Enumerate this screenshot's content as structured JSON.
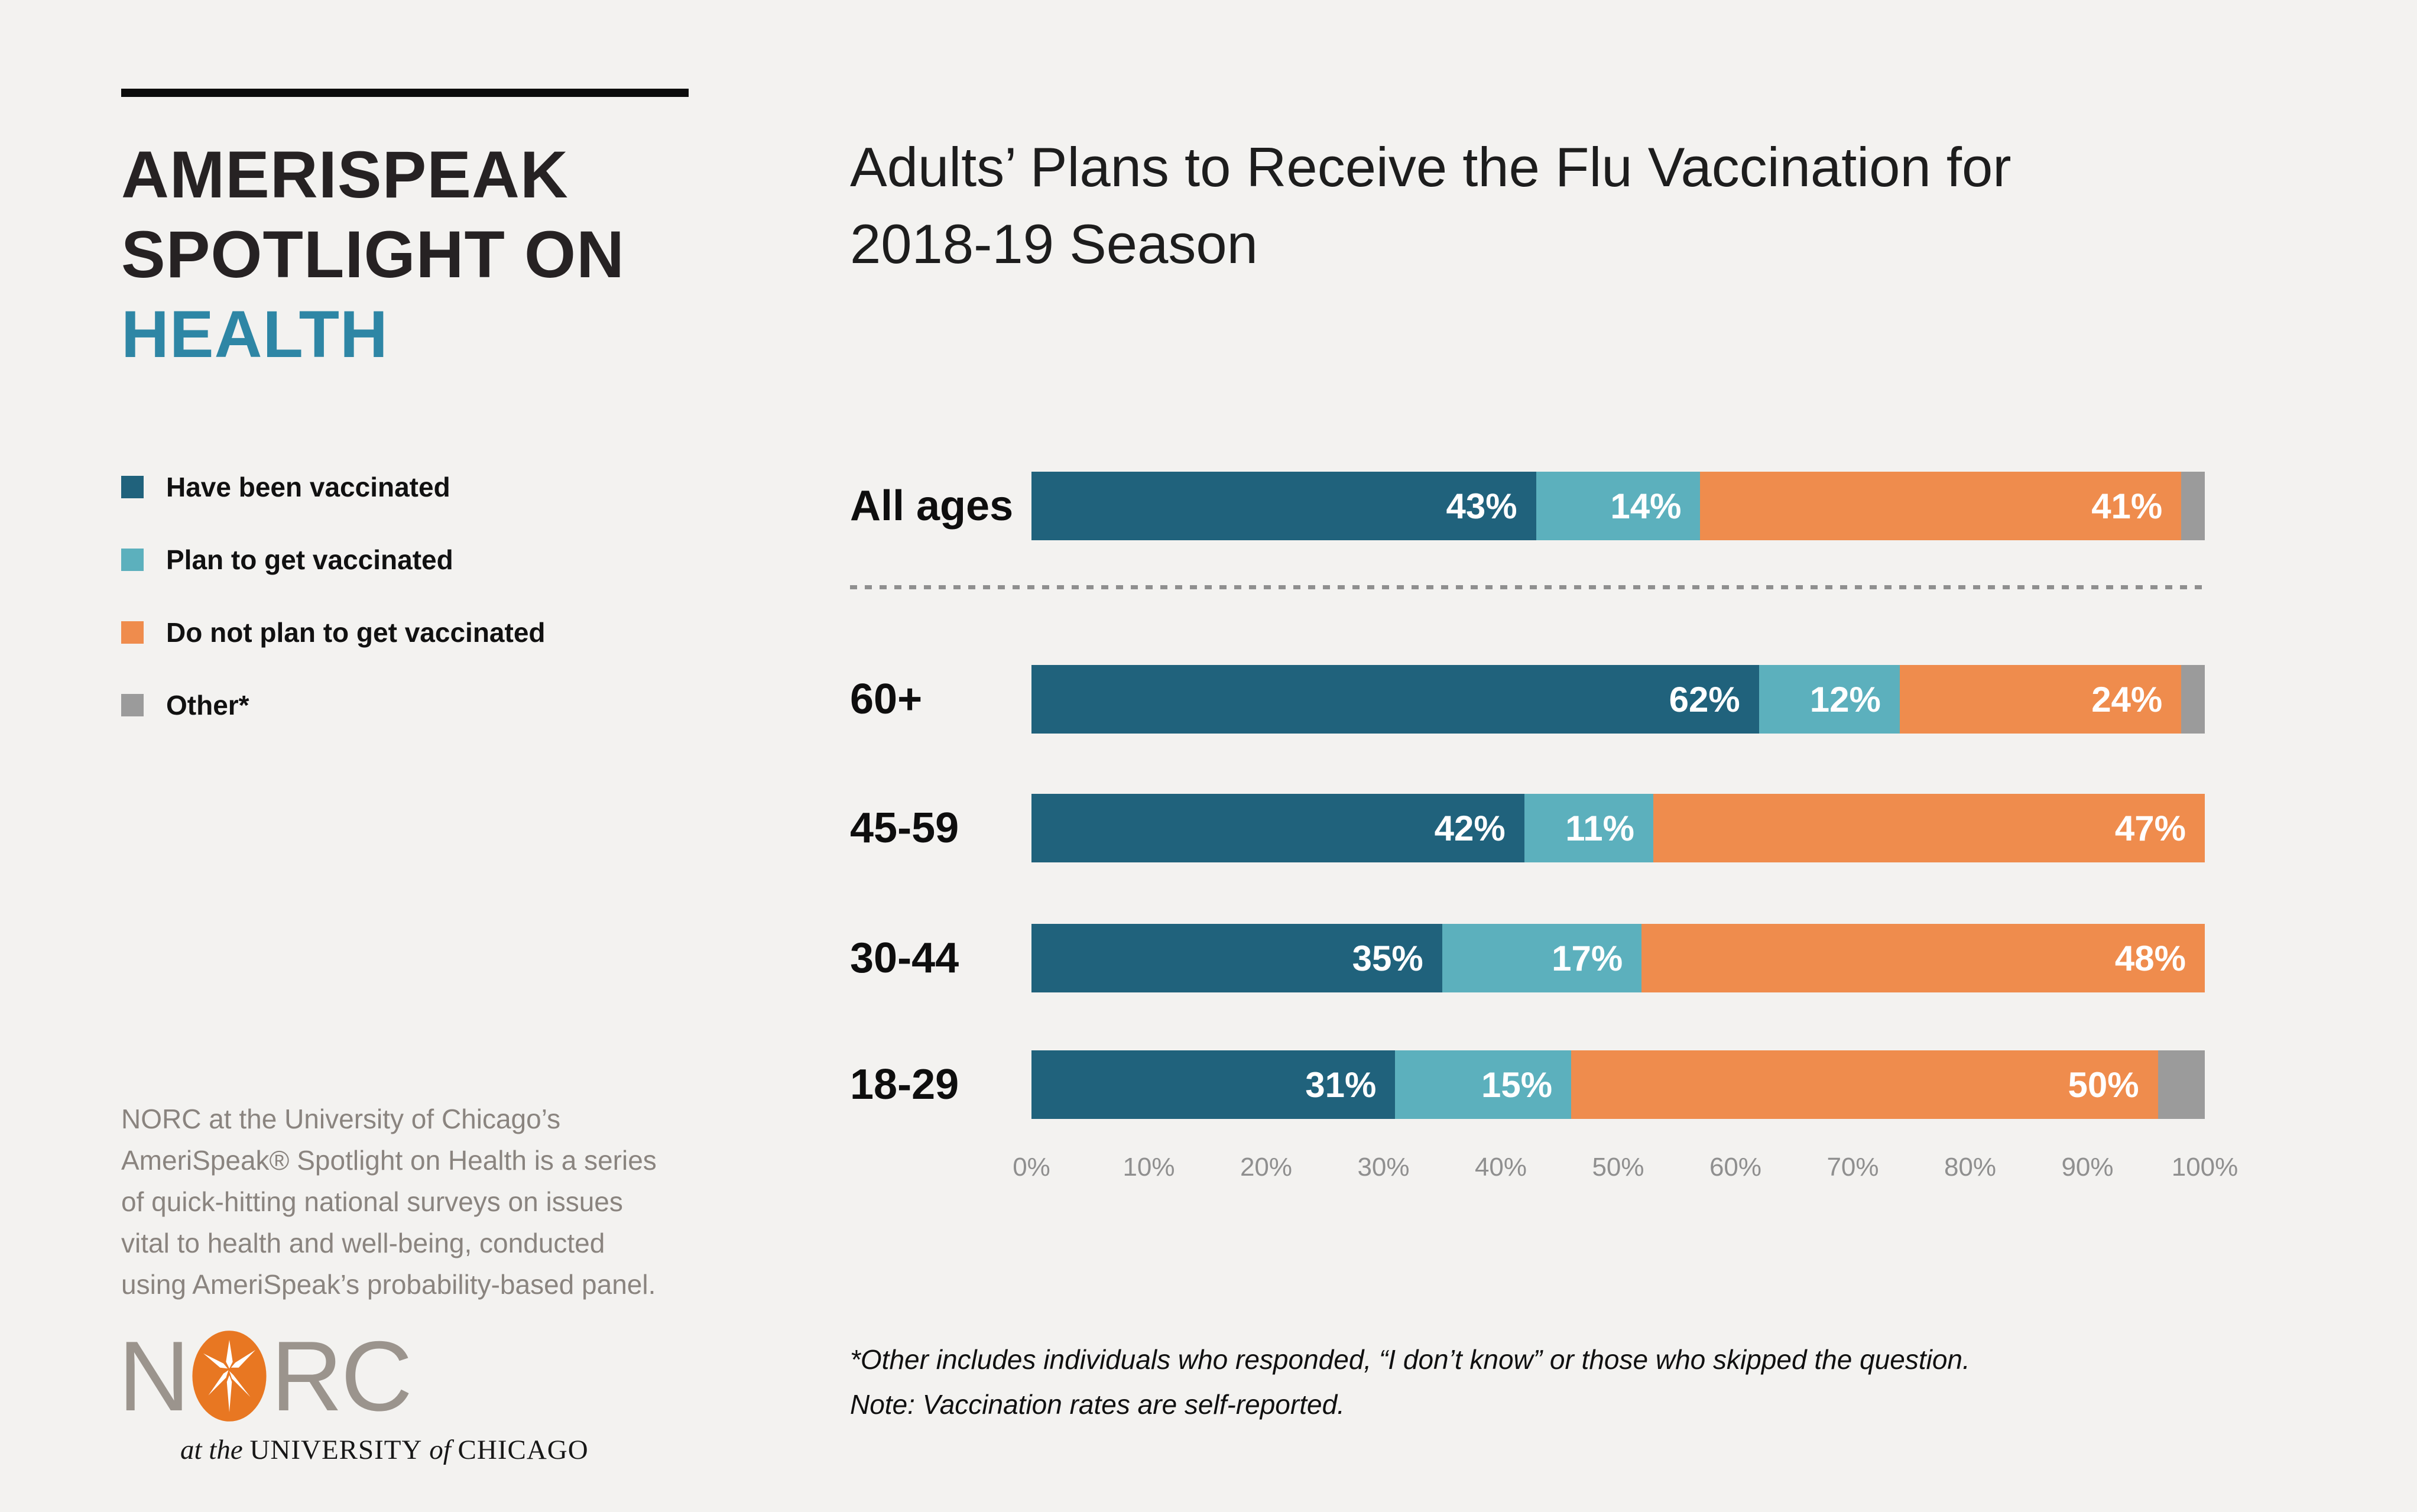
{
  "page": {
    "background_color": "#F3F2F0"
  },
  "sidebar": {
    "title_lines": [
      "AMERISPEAK",
      "SPOTLIGHT ON",
      "HEALTH"
    ],
    "title_accent_color": "#2E86A5",
    "legend": [
      {
        "label": "Have been vaccinated",
        "color": "#20627C"
      },
      {
        "label": "Plan to get vaccinated",
        "color": "#5CB0BD"
      },
      {
        "label": "Do not plan to get vaccinated",
        "color": "#EF8C4D"
      },
      {
        "label": "Other*",
        "color": "#9B9B9B"
      }
    ],
    "description": "NORC at the University of Chicago’s\nAmeriSpeak® Spotlight on Health is a series\nof quick-hitting national surveys on issues\nvital to health and well-being, conducted\nusing AmeriSpeak’s probability-based panel.",
    "logo": {
      "wordmark_left": "N",
      "wordmark_right": "RC",
      "oval_color": "#E87722",
      "wordmark_color": "#9B948D",
      "tagline_parts": [
        {
          "text": "at the ",
          "style": "italic"
        },
        {
          "text": "UNIVERSITY",
          "style": "caps"
        },
        {
          "text": " of ",
          "style": "italic"
        },
        {
          "text": "CHICAGO",
          "style": "caps"
        }
      ]
    }
  },
  "chart_data": {
    "type": "bar",
    "orientation": "horizontal",
    "stacked": true,
    "title": "Adults’ Plans to Receive the Flu Vaccination for\n2018-19 Season",
    "categories": [
      "All ages",
      "60+",
      "45-59",
      "30-44",
      "18-29"
    ],
    "series": [
      {
        "name": "Have been vaccinated",
        "color": "#20627C",
        "values": [
          43,
          62,
          42,
          35,
          31
        ],
        "show_labels": true
      },
      {
        "name": "Plan to get vaccinated",
        "color": "#5CB0BD",
        "values": [
          14,
          12,
          11,
          17,
          15
        ],
        "show_labels": true
      },
      {
        "name": "Do not plan to get vaccinated",
        "color": "#EF8C4D",
        "values": [
          41,
          24,
          47,
          48,
          50
        ],
        "show_labels": true
      },
      {
        "name": "Other*",
        "color": "#9B9B9B",
        "values": [
          2,
          2,
          0,
          0,
          4
        ],
        "show_labels": false
      }
    ],
    "value_suffix": "%",
    "x_axis": {
      "range": [
        0,
        100
      ],
      "ticks": [
        "0%",
        "10%",
        "20%",
        "30%",
        "40%",
        "50%",
        "60%",
        "70%",
        "80%",
        "90%",
        "100%"
      ]
    },
    "legend_position": "left",
    "grid": false,
    "footnotes": [
      "*Other includes individuals who responded, “I don’t know” or those who skipped the question.",
      "Note: Vaccination rates are self-reported."
    ]
  }
}
